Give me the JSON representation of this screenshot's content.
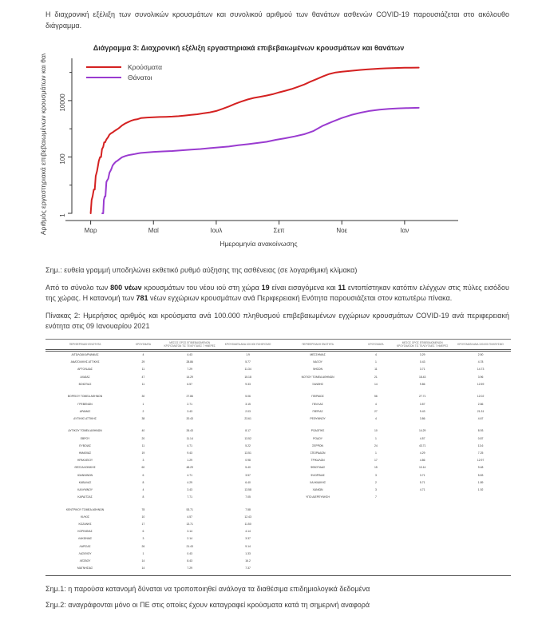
{
  "page": {
    "intro": "Η διαχρονική εξέλιξη των συνολικών κρουσμάτων και συνολικού αριθμού των θανάτων ασθενών COVID-19 παρουσιάζεται στο ακόλουθο διάγραμμα.",
    "note_chart": "Σημ.: ευθεία γραμμή υποδηλώνει εκθετικό ρυθμό αύξησης της ασθένειας (σε λογαριθμική κλίμακα)",
    "para2_parts": [
      {
        "t": "Από το σύνολο των ",
        "b": false
      },
      {
        "t": "800 νέων",
        "b": true
      },
      {
        "t": " κρουσμάτων του νέου ιού στη χώρα ",
        "b": false
      },
      {
        "t": "19",
        "b": true
      },
      {
        "t": " είναι εισαγόμενα και ",
        "b": false
      },
      {
        "t": "11",
        "b": true
      },
      {
        "t": " εντοπίστηκαν κατόπιν ελέγχων στις πύλες εισόδου της χώρας. Η κατανομή των ",
        "b": false
      },
      {
        "t": "781",
        "b": true
      },
      {
        "t": " νέων εγχώριων κρουσμάτων ανά Περιφερειακή Ενότητα παρουσιάζεται στον κατωτέρω πίνακα.",
        "b": false
      }
    ],
    "table_caption": "Πίνακας 2:  Ημερήσιος αριθμός και κρούσματα ανά 100.000 πληθυσμού επιβεβαιωμένων εγχώριων κρουσμάτων COVID-19 ανά περιφερειακή ενότητα στις 09 Ιανουαρίου 2021",
    "note1": "Σημ.1: η παρούσα κατανομή δύναται να τροποποιηθεί ανάλογα τα διαθέσιμα επιδημιολογικά δεδομένα",
    "note2": "Σημ.2: αναγράφονται μόνο οι ΠΕ στις οποίες έχουν καταγραφεί κρούσματα κατά τη σημερινή αναφορά"
  },
  "chart_data": {
    "type": "line",
    "title": "Διάγραμμα 3: Διαχρονική εξέλιξη εργαστηριακά επιβεβαιωμένων κρουσμάτων και θανάτων",
    "xlabel": "Ημερομηνία ανακοίνωσης",
    "ylabel": "Αριθμός εργαστηριακά επιβεβαιωμένων κρουσμάτων και θανάτων",
    "yscale": "log",
    "grid": false,
    "legend_position": "top-left",
    "ylim": [
      1,
      316227
    ],
    "yticks": [
      1,
      100,
      10000
    ],
    "yticks_minor": [
      10,
      1000,
      100000
    ],
    "xlim": [
      -0.6,
      11.3
    ],
    "xticks": [
      {
        "label": "Μαρ",
        "m": 0
      },
      {
        "label": "Μαϊ",
        "m": 2
      },
      {
        "label": "Ιουλ",
        "m": 4
      },
      {
        "label": "Σεπ",
        "m": 6
      },
      {
        "label": "Νοε",
        "m": 8
      },
      {
        "label": "Ιαν",
        "m": 10
      }
    ],
    "series": [
      {
        "name": "Κρούσματα",
        "color": "#d42121",
        "points": [
          [
            0,
            1
          ],
          [
            0.03,
            3
          ],
          [
            0.06,
            4
          ],
          [
            0.1,
            7
          ],
          [
            0.13,
            7
          ],
          [
            0.16,
            21
          ],
          [
            0.2,
            31
          ],
          [
            0.23,
            46
          ],
          [
            0.26,
            73
          ],
          [
            0.3,
            99
          ],
          [
            0.33,
            99
          ],
          [
            0.36,
            190
          ],
          [
            0.4,
            228
          ],
          [
            0.43,
            331
          ],
          [
            0.46,
            331
          ],
          [
            0.5,
            418
          ],
          [
            0.55,
            495
          ],
          [
            0.6,
            624
          ],
          [
            0.65,
            695
          ],
          [
            0.7,
            743
          ],
          [
            0.75,
            821
          ],
          [
            0.8,
            892
          ],
          [
            0.85,
            966
          ],
          [
            0.9,
            1061
          ],
          [
            1.0,
            1314
          ],
          [
            1.1,
            1544
          ],
          [
            1.2,
            1735
          ],
          [
            1.3,
            1955
          ],
          [
            1.4,
            2114
          ],
          [
            1.5,
            2207
          ],
          [
            1.6,
            2401
          ],
          [
            1.8,
            2506
          ],
          [
            2.0,
            2576
          ],
          [
            2.2,
            2620
          ],
          [
            2.4,
            2663
          ],
          [
            2.6,
            2716
          ],
          [
            2.8,
            2810
          ],
          [
            3.0,
            2952
          ],
          [
            3.2,
            3112
          ],
          [
            3.4,
            3287
          ],
          [
            3.6,
            3562
          ],
          [
            3.8,
            3826
          ],
          [
            4.0,
            4279
          ],
          [
            4.2,
            5123
          ],
          [
            4.4,
            6177
          ],
          [
            4.6,
            7684
          ],
          [
            4.8,
            9280
          ],
          [
            5.0,
            10998
          ],
          [
            5.2,
            12452
          ],
          [
            5.4,
            13730
          ],
          [
            5.6,
            15142
          ],
          [
            5.8,
            16913
          ],
          [
            6.0,
            19613
          ],
          [
            6.2,
            22358
          ],
          [
            6.4,
            25802
          ],
          [
            6.6,
            30782
          ],
          [
            6.8,
            37196
          ],
          [
            7.0,
            46892
          ],
          [
            7.2,
            58187
          ],
          [
            7.4,
            72510
          ],
          [
            7.6,
            87812
          ],
          [
            7.8,
            99306
          ],
          [
            8.0,
            105271
          ],
          [
            8.2,
            111537
          ],
          [
            8.4,
            117143
          ],
          [
            8.6,
            122801
          ],
          [
            8.8,
            127557
          ],
          [
            9.0,
            131856
          ],
          [
            9.2,
            135931
          ],
          [
            9.4,
            139447
          ],
          [
            9.6,
            142476
          ],
          [
            9.8,
            144738
          ],
          [
            10.0,
            146020
          ],
          [
            10.2,
            147283
          ],
          [
            10.45,
            148370
          ]
        ]
      },
      {
        "name": "Θάνατοι",
        "color": "#9a3bd0",
        "points": [
          [
            0.37,
            1
          ],
          [
            0.4,
            1
          ],
          [
            0.42,
            3
          ],
          [
            0.45,
            4
          ],
          [
            0.47,
            4
          ],
          [
            0.5,
            13
          ],
          [
            0.53,
            15
          ],
          [
            0.56,
            17
          ],
          [
            0.6,
            28
          ],
          [
            0.63,
            32
          ],
          [
            0.66,
            38
          ],
          [
            0.7,
            50
          ],
          [
            0.75,
            59
          ],
          [
            0.8,
            68
          ],
          [
            0.85,
            73
          ],
          [
            0.9,
            81
          ],
          [
            1.0,
            98
          ],
          [
            1.1,
            108
          ],
          [
            1.2,
            116
          ],
          [
            1.3,
            121
          ],
          [
            1.4,
            127
          ],
          [
            1.5,
            134
          ],
          [
            1.6,
            139
          ],
          [
            1.8,
            146
          ],
          [
            2.0,
            151
          ],
          [
            2.3,
            157
          ],
          [
            2.6,
            163
          ],
          [
            2.9,
            172
          ],
          [
            3.2,
            183
          ],
          [
            3.5,
            192
          ],
          [
            3.8,
            206
          ],
          [
            4.1,
            219
          ],
          [
            4.4,
            235
          ],
          [
            4.7,
            260
          ],
          [
            5.0,
            284
          ],
          [
            5.3,
            313
          ],
          [
            5.6,
            344
          ],
          [
            5.9,
            405
          ],
          [
            6.2,
            462
          ],
          [
            6.5,
            536
          ],
          [
            6.8,
            642
          ],
          [
            7.1,
            839
          ],
          [
            7.4,
            1288
          ],
          [
            7.7,
            1781
          ],
          [
            8.0,
            2406
          ],
          [
            8.3,
            3099
          ],
          [
            8.6,
            3742
          ],
          [
            8.9,
            4340
          ],
          [
            9.2,
            4788
          ],
          [
            9.5,
            5111
          ],
          [
            9.8,
            5329
          ],
          [
            10.1,
            5441
          ],
          [
            10.45,
            5570
          ]
        ]
      }
    ]
  },
  "table": {
    "headers": [
      "ΠΕΡΙΦΕΡΕΙΑΚΗ ΕΝΟΤΗΤΑ",
      "ΚΡΟΥΣΜΑΤΑ",
      "ΜΕΣΟΣ ΟΡΟΣ ΕΠΙΒΕΒΑΙΩΜΕΝΩΝ ΚΡΟΥΣΜΑΤΩΝ ΤΙΣ ΤΕΛΕΥΤΑΙΕΣ 7 ΗΜΕΡΕΣ",
      "ΚΡΟΥΣΜΑΤΑ ΑΝΑ 100.000 ΠΛΗΘΥΣΜΟ"
    ],
    "left": [
      [
        "ΑΙΤΩΛΟΑΚΑΡΝΑΝΙΑΣ",
        "4",
        "4.43",
        "1.9"
      ],
      [
        "ΑΝΑΤΟΛΙΚΗΣ ΑΤΤΙΚΗΣ",
        "29",
        "28.86",
        "5.77"
      ],
      [
        "ΑΡΓΟΛΙΔΑΣ",
        "11",
        "7.29",
        "11.34"
      ],
      [
        "ΑΧΑΪΑΣ",
        "47",
        "14.29",
        "15.18"
      ],
      [
        "ΒΟΙΩΤΙΑΣ",
        "11",
        "6.57",
        "9.33"
      ],
      null,
      [
        "ΒΟΡΕΙΟΥ ΤΟΜΕΑ ΑΘΗΝΩΝ",
        "30",
        "27.86",
        "5.06"
      ],
      [
        "ΓΡΕΒΕΝΩΝ",
        "1",
        "2.71",
        "3.15"
      ],
      [
        "ΔΡΑΜΑΣ",
        "2",
        "3.43",
        "2.03"
      ],
      [
        "ΔΥΤΙΚΗΣ ΑΤΤΙΚΗΣ",
        "38",
        "20.43",
        "23.61"
      ],
      null,
      [
        "ΔΥΤΙΚΟΥ ΤΟΜΕΑ ΑΘΗΝΩΝ",
        "40",
        "26.43",
        "8.17"
      ],
      [
        "ΕΒΡΟΥ",
        "20",
        "11.14",
        "13.52"
      ],
      [
        "ΕΥΒΟΙΑΣ",
        "11",
        "4.71",
        "5.22"
      ],
      [
        "ΗΜΑΘΙΑΣ",
        "19",
        "9.43",
        "13.51"
      ],
      [
        "ΗΡΑΚΛΕΙΟΥ",
        "3",
        "1.29",
        "0.98"
      ],
      [
        "ΘΕΣΣΑΛΟΝΙΚΗΣ",
        "60",
        "48.29",
        "5.40"
      ],
      [
        "ΙΩΑΝΝΙΝΩΝ",
        "6",
        "4.71",
        "3.57"
      ],
      [
        "ΚΑΒΑΛΑΣ",
        "8",
        "4.29",
        "6.40"
      ],
      [
        "ΚΑΛΥΜΝΟΥ",
        "4",
        "3.43",
        "13.58"
      ],
      [
        "ΚΑΡΔΙΤΣΑΣ",
        "8",
        "7.71",
        "7.05"
      ],
      null,
      [
        "ΚΕΝΤΡΙΚΟΥ ΤΟΜΕΑ ΑΘΗΝΩΝ",
        "78",
        "53.71",
        "7.58"
      ],
      [
        "ΚΙΛΚΙΣ",
        "10",
        "4.57",
        "12.43"
      ],
      [
        "ΚΟΖΑΝΗΣ",
        "17",
        "13.71",
        "11.50"
      ],
      [
        "ΚΟΡΙΝΘΙΑΣ",
        "6",
        "3.14",
        "4.14"
      ],
      [
        "ΛΑΚΩΝΙΑΣ",
        "3",
        "2.14",
        "3.37"
      ],
      [
        "ΛΑΡΙΣΑΣ",
        "26",
        "21.43",
        "9.14"
      ],
      [
        "ΛΑΣΙΘΙΟΥ",
        "1",
        "0.43",
        "1.33"
      ],
      [
        "ΛΕΣΒΟΥ",
        "14",
        "8.43",
        "16.2"
      ],
      [
        "ΜΑΓΝΗΣΙΑΣ",
        "14",
        "7.29",
        "7.37"
      ]
    ],
    "right": [
      [
        "ΜΕΣΣΗΝΙΑΣ",
        "4",
        "3.29",
        "2.50"
      ],
      [
        "ΝΑΞΟΥ",
        "1",
        "0.43",
        "4.78"
      ],
      [
        "ΝΗΣΩΝ",
        "11",
        "3.71",
        "14.73"
      ],
      [
        "ΝΟΤΙΟΥ ΤΟΜΕΑ ΑΘΗΝΩΝ",
        "21",
        "18.43",
        "3.96"
      ],
      [
        "ΞΑΝΘΗΣ",
        "14",
        "9.86",
        "12.59"
      ],
      null,
      [
        "ΠΕΙΡΑΙΩΣ",
        "56",
        "27.71",
        "12.02"
      ],
      [
        "ΠΕΛΛΑΣ",
        "4",
        "3.57",
        "2.86"
      ],
      [
        "ΠΙΕΡΙΑΣ",
        "27",
        "9.43",
        "21.31"
      ],
      [
        "ΡΕΘΥΜΝΟΥ",
        "4",
        "3.86",
        "4.67"
      ],
      null,
      [
        "ΡΟΔΟΠΗΣ",
        "10",
        "14.29",
        "8.93"
      ],
      [
        "ΡΟΔΟΥ",
        "1",
        "4.57",
        "0.87"
      ],
      [
        "ΣΕΡΡΩΝ",
        "24",
        "43.71",
        "13.6"
      ],
      [
        "ΣΠΟΡΑΔΩΝ",
        "1",
        "4.29",
        "7.25"
      ],
      [
        "ΤΡΙΚΑΛΩΝ",
        "17",
        "4.86",
        "12.97"
      ],
      [
        "ΦΘΙΩΤΙΔΑΣ",
        "15",
        "10.14",
        "9.48"
      ],
      [
        "ΦΛΩΡΙΝΑΣ",
        "3",
        "3.71",
        "5.83"
      ],
      [
        "ΧΑΛΚΙΔΙΚΗΣ",
        "2",
        "5.71",
        "1.89"
      ],
      [
        "ΧΑΝΙΩΝ",
        "3",
        "4.71",
        "1.92"
      ],
      [
        "ΥΠΟ ΔΙΕΡΕΥΝΗΣΗ",
        "7",
        "",
        ""
      ]
    ]
  }
}
